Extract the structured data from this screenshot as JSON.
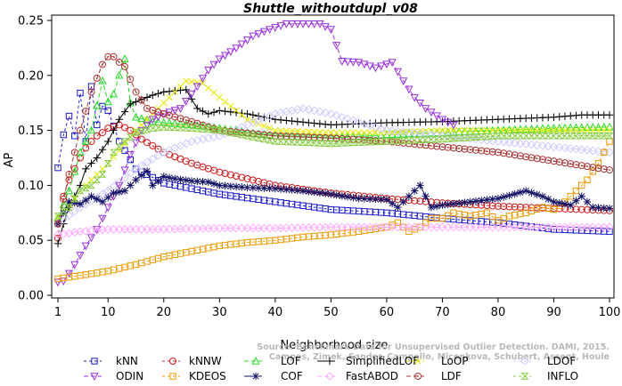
{
  "chart_data": {
    "type": "line",
    "title": "Shuttle_withoutdupl_v08",
    "xlabel": "Neighborhood size",
    "ylabel": "AP",
    "xlim": [
      1,
      100
    ],
    "ylim": [
      0,
      0.25
    ],
    "x_ticks": [
      "1",
      "10",
      "20",
      "30",
      "40",
      "50",
      "60",
      "70",
      "80",
      "90",
      "100"
    ],
    "y_ticks": [
      "0.00",
      "0.05",
      "0.10",
      "0.15",
      "0.20",
      "0.25"
    ],
    "grid": false,
    "legend_placement": "bottom",
    "watermark": [
      "Source: Benchmark Data for Unsupervised Outlier Detection. DAMI, 2015.",
      "Campos, Zimek, Sander, Campello, Micenkova, Schubert, Assent, Houle"
    ],
    "series": [
      {
        "name": "kNN",
        "color": "#1a1acc",
        "marker": "square",
        "dash": "3,3",
        "points": [
          [
            1,
            0.116
          ],
          [
            2,
            0.146
          ],
          [
            3,
            0.163
          ],
          [
            4,
            0.145
          ],
          [
            5,
            0.184
          ],
          [
            6,
            0.14
          ],
          [
            7,
            0.19
          ],
          [
            8,
            0.155
          ],
          [
            9,
            0.172
          ],
          [
            10,
            0.168
          ],
          [
            12,
            0.14
          ],
          [
            15,
            0.115
          ],
          [
            20,
            0.102
          ],
          [
            25,
            0.097
          ],
          [
            30,
            0.092
          ],
          [
            40,
            0.085
          ],
          [
            50,
            0.078
          ],
          [
            60,
            0.075
          ],
          [
            70,
            0.07
          ],
          [
            80,
            0.066
          ],
          [
            90,
            0.06
          ],
          [
            100,
            0.058
          ]
        ]
      },
      {
        "name": "kNNW",
        "color": "#cc1a1a",
        "marker": "circle",
        "dash": "3,3",
        "points": [
          [
            1,
            0.052
          ],
          [
            2,
            0.09
          ],
          [
            3,
            0.105
          ],
          [
            4,
            0.115
          ],
          [
            5,
            0.125
          ],
          [
            6,
            0.134
          ],
          [
            7,
            0.14
          ],
          [
            8,
            0.145
          ],
          [
            9,
            0.148
          ],
          [
            10,
            0.152
          ],
          [
            12,
            0.155
          ],
          [
            14,
            0.15
          ],
          [
            16,
            0.142
          ],
          [
            18,
            0.136
          ],
          [
            20,
            0.13
          ],
          [
            25,
            0.12
          ],
          [
            30,
            0.112
          ],
          [
            40,
            0.1
          ],
          [
            50,
            0.093
          ],
          [
            60,
            0.088
          ],
          [
            70,
            0.084
          ],
          [
            80,
            0.081
          ],
          [
            90,
            0.079
          ],
          [
            100,
            0.077
          ]
        ]
      },
      {
        "name": "LOF",
        "color": "#22dd22",
        "marker": "triangle",
        "dash": "5,3",
        "points": [
          [
            1,
            0.07
          ],
          [
            3,
            0.095
          ],
          [
            5,
            0.13
          ],
          [
            7,
            0.15
          ],
          [
            9,
            0.195
          ],
          [
            10,
            0.176
          ],
          [
            11,
            0.183
          ],
          [
            12,
            0.2
          ],
          [
            13,
            0.215
          ],
          [
            14,
            0.175
          ],
          [
            15,
            0.162
          ],
          [
            18,
            0.158
          ],
          [
            20,
            0.157
          ],
          [
            25,
            0.155
          ],
          [
            30,
            0.152
          ],
          [
            35,
            0.148
          ],
          [
            40,
            0.145
          ],
          [
            50,
            0.143
          ],
          [
            60,
            0.146
          ],
          [
            70,
            0.148
          ],
          [
            80,
            0.15
          ],
          [
            90,
            0.152
          ],
          [
            100,
            0.153
          ]
        ]
      },
      {
        "name": "SimplifiedLOF",
        "color": "#000000",
        "marker": "plus",
        "dash": "",
        "points": [
          [
            1,
            0.047
          ],
          [
            2,
            0.065
          ],
          [
            3,
            0.08
          ],
          [
            4,
            0.09
          ],
          [
            5,
            0.1
          ],
          [
            6,
            0.115
          ],
          [
            8,
            0.125
          ],
          [
            10,
            0.14
          ],
          [
            12,
            0.16
          ],
          [
            14,
            0.174
          ],
          [
            16,
            0.178
          ],
          [
            18,
            0.182
          ],
          [
            20,
            0.185
          ],
          [
            22,
            0.186
          ],
          [
            24,
            0.187
          ],
          [
            26,
            0.17
          ],
          [
            28,
            0.165
          ],
          [
            30,
            0.168
          ],
          [
            35,
            0.165
          ],
          [
            40,
            0.16
          ],
          [
            50,
            0.155
          ],
          [
            60,
            0.157
          ],
          [
            70,
            0.158
          ],
          [
            80,
            0.16
          ],
          [
            90,
            0.162
          ],
          [
            95,
            0.164
          ],
          [
            100,
            0.164
          ]
        ]
      },
      {
        "name": "LoOP",
        "color": "#e8e800",
        "marker": "x",
        "dash": "3,3",
        "points": [
          [
            1,
            0.07
          ],
          [
            5,
            0.095
          ],
          [
            10,
            0.12
          ],
          [
            15,
            0.15
          ],
          [
            20,
            0.175
          ],
          [
            24,
            0.195
          ],
          [
            27,
            0.193
          ],
          [
            30,
            0.18
          ],
          [
            35,
            0.16
          ],
          [
            40,
            0.15
          ],
          [
            50,
            0.148
          ],
          [
            60,
            0.148
          ],
          [
            70,
            0.15
          ],
          [
            80,
            0.15
          ],
          [
            90,
            0.15
          ],
          [
            100,
            0.15
          ]
        ]
      },
      {
        "name": "LDOF",
        "color": "#ccccff",
        "marker": "diamond",
        "dash": "3,3",
        "points": [
          [
            1,
            0.065
          ],
          [
            5,
            0.08
          ],
          [
            10,
            0.095
          ],
          [
            15,
            0.115
          ],
          [
            20,
            0.13
          ],
          [
            25,
            0.14
          ],
          [
            30,
            0.145
          ],
          [
            35,
            0.155
          ],
          [
            40,
            0.165
          ],
          [
            45,
            0.17
          ],
          [
            50,
            0.165
          ],
          [
            60,
            0.15
          ],
          [
            70,
            0.145
          ],
          [
            80,
            0.14
          ],
          [
            90,
            0.135
          ],
          [
            100,
            0.13
          ]
        ]
      },
      {
        "name": "ODIN",
        "color": "#9933dd",
        "marker": "triangle-down",
        "dash": "5,3",
        "points": [
          [
            1,
            0.012
          ],
          [
            2,
            0.013
          ],
          [
            3,
            0.02
          ],
          [
            4,
            0.028
          ],
          [
            6,
            0.045
          ],
          [
            8,
            0.06
          ],
          [
            10,
            0.08
          ],
          [
            12,
            0.1
          ],
          [
            14,
            0.128
          ],
          [
            16,
            0.15
          ],
          [
            18,
            0.16
          ],
          [
            20,
            0.165
          ],
          [
            23,
            0.17
          ],
          [
            26,
            0.19
          ],
          [
            28,
            0.205
          ],
          [
            30,
            0.215
          ],
          [
            33,
            0.225
          ],
          [
            36,
            0.236
          ],
          [
            39,
            0.242
          ],
          [
            42,
            0.247
          ],
          [
            45,
            0.247
          ],
          [
            48,
            0.247
          ],
          [
            50,
            0.242
          ],
          [
            52,
            0.213
          ],
          [
            55,
            0.212
          ],
          [
            58,
            0.207
          ],
          [
            61,
            0.212
          ],
          [
            63,
            0.195
          ],
          [
            65,
            0.18
          ],
          [
            67,
            0.17
          ],
          [
            70,
            0.16
          ],
          [
            72,
            0.155
          ]
        ]
      },
      {
        "name": "KDEOS",
        "color": "#ee9900",
        "marker": "square",
        "dash": "3,3",
        "points": [
          [
            1,
            0.015
          ],
          [
            5,
            0.018
          ],
          [
            10,
            0.022
          ],
          [
            15,
            0.028
          ],
          [
            20,
            0.035
          ],
          [
            25,
            0.04
          ],
          [
            30,
            0.045
          ],
          [
            35,
            0.048
          ],
          [
            40,
            0.05
          ],
          [
            45,
            0.053
          ],
          [
            50,
            0.055
          ],
          [
            55,
            0.058
          ],
          [
            60,
            0.062
          ],
          [
            62,
            0.066
          ],
          [
            64,
            0.058
          ],
          [
            66,
            0.062
          ],
          [
            68,
            0.07
          ],
          [
            70,
            0.07
          ],
          [
            72,
            0.075
          ],
          [
            75,
            0.072
          ],
          [
            78,
            0.075
          ],
          [
            80,
            0.068
          ],
          [
            82,
            0.072
          ],
          [
            85,
            0.075
          ],
          [
            88,
            0.08
          ],
          [
            90,
            0.078
          ],
          [
            92,
            0.085
          ],
          [
            94,
            0.095
          ],
          [
            96,
            0.105
          ],
          [
            98,
            0.12
          ],
          [
            100,
            0.14
          ]
        ]
      },
      {
        "name": "COF",
        "color": "#111166",
        "marker": "asterisk",
        "dash": "",
        "points": [
          [
            1,
            0.065
          ],
          [
            3,
            0.085
          ],
          [
            5,
            0.083
          ],
          [
            7,
            0.09
          ],
          [
            9,
            0.085
          ],
          [
            11,
            0.093
          ],
          [
            13,
            0.095
          ],
          [
            15,
            0.105
          ],
          [
            17,
            0.113
          ],
          [
            18,
            0.1
          ],
          [
            20,
            0.108
          ],
          [
            22,
            0.106
          ],
          [
            25,
            0.104
          ],
          [
            28,
            0.103
          ],
          [
            30,
            0.1
          ],
          [
            35,
            0.098
          ],
          [
            40,
            0.097
          ],
          [
            45,
            0.095
          ],
          [
            50,
            0.092
          ],
          [
            55,
            0.088
          ],
          [
            60,
            0.087
          ],
          [
            62,
            0.08
          ],
          [
            64,
            0.09
          ],
          [
            66,
            0.1
          ],
          [
            68,
            0.08
          ],
          [
            70,
            0.082
          ],
          [
            75,
            0.085
          ],
          [
            80,
            0.088
          ],
          [
            85,
            0.095
          ],
          [
            88,
            0.09
          ],
          [
            90,
            0.085
          ],
          [
            93,
            0.082
          ],
          [
            95,
            0.09
          ],
          [
            97,
            0.08
          ],
          [
            100,
            0.079
          ]
        ]
      },
      {
        "name": "FastABOD",
        "color": "#ffaaff",
        "marker": "diamond",
        "dash": "5,3",
        "points": [
          [
            1,
            0.055
          ],
          [
            5,
            0.058
          ],
          [
            10,
            0.06
          ],
          [
            20,
            0.06
          ],
          [
            30,
            0.061
          ],
          [
            40,
            0.061
          ],
          [
            50,
            0.062
          ],
          [
            60,
            0.062
          ],
          [
            70,
            0.062
          ],
          [
            80,
            0.062
          ],
          [
            90,
            0.062
          ],
          [
            100,
            0.062
          ]
        ]
      },
      {
        "name": "LDF",
        "color": "#aa3333",
        "marker": "circle-dot",
        "dash": "5,3",
        "points": [
          [
            1,
            0.065
          ],
          [
            3,
            0.11
          ],
          [
            5,
            0.15
          ],
          [
            7,
            0.185
          ],
          [
            9,
            0.21
          ],
          [
            10,
            0.217
          ],
          [
            11,
            0.217
          ],
          [
            12,
            0.212
          ],
          [
            13,
            0.208
          ],
          [
            15,
            0.185
          ],
          [
            17,
            0.17
          ],
          [
            20,
            0.165
          ],
          [
            25,
            0.158
          ],
          [
            30,
            0.15
          ],
          [
            40,
            0.145
          ],
          [
            50,
            0.143
          ],
          [
            60,
            0.14
          ],
          [
            70,
            0.135
          ],
          [
            80,
            0.13
          ],
          [
            90,
            0.122
          ],
          [
            100,
            0.114
          ]
        ]
      },
      {
        "name": "INFLO",
        "color": "#88cc44",
        "marker": "hourglass",
        "dash": "3,3",
        "points": [
          [
            1,
            0.072
          ],
          [
            3,
            0.08
          ],
          [
            5,
            0.095
          ],
          [
            7,
            0.1
          ],
          [
            9,
            0.11
          ],
          [
            11,
            0.13
          ],
          [
            13,
            0.14
          ],
          [
            15,
            0.148
          ],
          [
            18,
            0.152
          ],
          [
            20,
            0.153
          ],
          [
            25,
            0.152
          ],
          [
            30,
            0.15
          ],
          [
            35,
            0.145
          ],
          [
            40,
            0.14
          ],
          [
            50,
            0.138
          ],
          [
            60,
            0.14
          ],
          [
            70,
            0.142
          ],
          [
            80,
            0.145
          ],
          [
            90,
            0.145
          ],
          [
            100,
            0.145
          ]
        ]
      }
    ]
  }
}
